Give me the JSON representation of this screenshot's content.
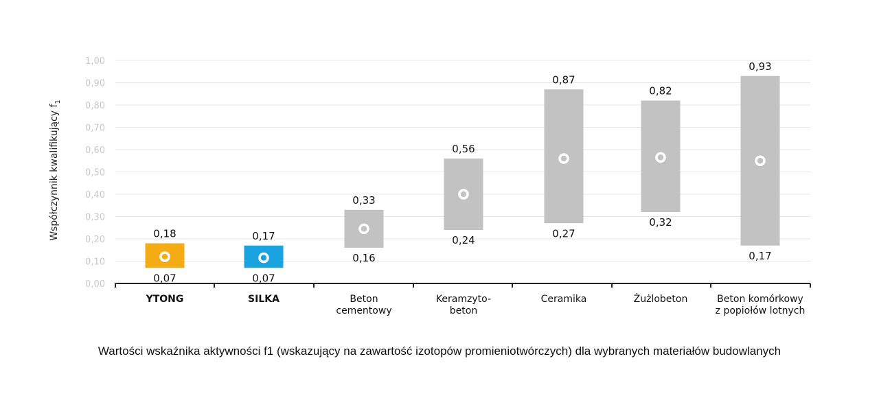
{
  "caption": "Wartości wskaźnika aktywności f1 (wskazujący na zawartość izotopów promieniotwórczych) dla wybranych materiałów budowlanych",
  "chart_data": {
    "type": "range-bar",
    "ylabel": "Współczynnik kwalifikujący f",
    "ylabel_subscript": "1",
    "ylim": [
      0,
      1.0
    ],
    "yticks": [
      "0,00",
      "0,10",
      "0,20",
      "0,30",
      "0,40",
      "0,50",
      "0,60",
      "0,70",
      "0,80",
      "0,90",
      "1,00"
    ],
    "grid": true,
    "colors": {
      "ytong": "#f5ab13",
      "silka": "#1aa3de",
      "default": "#c2c2c2",
      "grid": "#e6e6e6",
      "axis": "#222222",
      "tick_text": "#c8c8c8",
      "label_text": "#111111"
    },
    "categories": [
      {
        "lines": [
          "YTONG"
        ],
        "bold": true,
        "color": "ytong",
        "low": 0.07,
        "high": 0.18,
        "mid": 0.12,
        "low_label": "0,07",
        "high_label": "0,18"
      },
      {
        "lines": [
          "SILKA"
        ],
        "bold": true,
        "color": "silka",
        "low": 0.07,
        "high": 0.17,
        "mid": 0.115,
        "low_label": "0,07",
        "high_label": "0,17"
      },
      {
        "lines": [
          "Beton",
          "cementowy"
        ],
        "bold": false,
        "color": "default",
        "low": 0.16,
        "high": 0.33,
        "mid": 0.245,
        "low_label": "0,16",
        "high_label": "0,33"
      },
      {
        "lines": [
          "Keramzyto-",
          "beton"
        ],
        "bold": false,
        "color": "default",
        "low": 0.24,
        "high": 0.56,
        "mid": 0.4,
        "low_label": "0,24",
        "high_label": "0,56"
      },
      {
        "lines": [
          "Ceramika"
        ],
        "bold": false,
        "color": "default",
        "low": 0.27,
        "high": 0.87,
        "mid": 0.56,
        "low_label": "0,27",
        "high_label": "0,87"
      },
      {
        "lines": [
          "Żużlobeton"
        ],
        "bold": false,
        "color": "default",
        "low": 0.32,
        "high": 0.82,
        "mid": 0.565,
        "low_label": "0,32",
        "high_label": "0,82"
      },
      {
        "lines": [
          "Beton komórkowy",
          "z popiołów lotnych"
        ],
        "bold": false,
        "color": "default",
        "low": 0.17,
        "high": 0.93,
        "mid": 0.55,
        "low_label": "0,17",
        "high_label": "0,93"
      }
    ]
  }
}
